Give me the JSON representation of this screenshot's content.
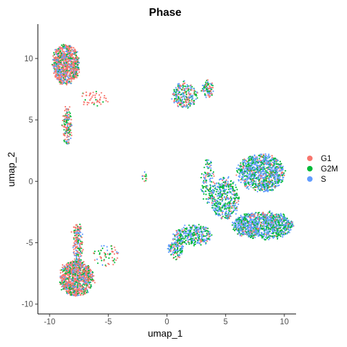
{
  "chart_data": {
    "type": "scatter",
    "title": "Phase",
    "xlabel": "umap_1",
    "ylabel": "umap_2",
    "xlim": [
      -11,
      11
    ],
    "ylim": [
      -10.8,
      12.8
    ],
    "xticks": [
      -10,
      -5,
      0,
      5,
      10
    ],
    "yticks": [
      -10,
      -5,
      0,
      5,
      10
    ],
    "grid": false,
    "legend_position": "right",
    "series": [
      {
        "name": "G1",
        "color": "#F8766D"
      },
      {
        "name": "G2M",
        "color": "#00BA38"
      },
      {
        "name": "S",
        "color": "#619CFF"
      }
    ],
    "clusters": [
      {
        "cx": -8.6,
        "cy": 9.5,
        "rx": 1.1,
        "ry": 1.6,
        "weights": [
          0.55,
          0.2,
          0.25
        ],
        "n": 900
      },
      {
        "cx": -8.5,
        "cy": 4.5,
        "rx": 0.35,
        "ry": 1.5,
        "weights": [
          0.45,
          0.3,
          0.25
        ],
        "n": 160
      },
      {
        "cx": -6.3,
        "cy": 6.7,
        "rx": 1.2,
        "ry": 0.6,
        "weights": [
          0.8,
          0.2,
          0.0
        ],
        "n": 50
      },
      {
        "cx": 1.5,
        "cy": 7.0,
        "rx": 1.0,
        "ry": 1.0,
        "weights": [
          0.3,
          0.35,
          0.35
        ],
        "n": 260
      },
      {
        "cx": 3.5,
        "cy": 7.5,
        "rx": 0.45,
        "ry": 0.6,
        "weights": [
          0.3,
          0.35,
          0.35
        ],
        "n": 90
      },
      {
        "cx": -1.9,
        "cy": 0.3,
        "rx": 0.2,
        "ry": 0.4,
        "weights": [
          0.3,
          0.4,
          0.3
        ],
        "n": 12
      },
      {
        "cx": 8.0,
        "cy": 0.7,
        "rx": 2.0,
        "ry": 1.5,
        "weights": [
          0.12,
          0.33,
          0.55
        ],
        "n": 1000
      },
      {
        "cx": 4.9,
        "cy": -1.4,
        "rx": 1.2,
        "ry": 1.7,
        "weights": [
          0.1,
          0.45,
          0.45
        ],
        "n": 450
      },
      {
        "cx": 8.2,
        "cy": -3.6,
        "rx": 2.6,
        "ry": 1.1,
        "weights": [
          0.12,
          0.33,
          0.55
        ],
        "n": 1100
      },
      {
        "cx": 2.3,
        "cy": -4.4,
        "rx": 1.5,
        "ry": 0.8,
        "weights": [
          0.12,
          0.4,
          0.48
        ],
        "n": 320
      },
      {
        "cx": 0.8,
        "cy": -5.3,
        "rx": 0.6,
        "ry": 1.0,
        "weights": [
          0.12,
          0.4,
          0.48
        ],
        "n": 160
      },
      {
        "cx": 3.5,
        "cy": 0.0,
        "rx": 0.5,
        "ry": 1.8,
        "weights": [
          0.1,
          0.4,
          0.5
        ],
        "n": 130
      },
      {
        "cx": -7.6,
        "cy": -5.0,
        "rx": 0.4,
        "ry": 1.5,
        "weights": [
          0.5,
          0.25,
          0.25
        ],
        "n": 180
      },
      {
        "cx": -5.2,
        "cy": -6.0,
        "rx": 1.1,
        "ry": 0.9,
        "weights": [
          0.45,
          0.35,
          0.2
        ],
        "n": 60
      },
      {
        "cx": -7.7,
        "cy": -7.9,
        "rx": 1.4,
        "ry": 1.4,
        "weights": [
          0.55,
          0.25,
          0.2
        ],
        "n": 1000
      }
    ]
  }
}
